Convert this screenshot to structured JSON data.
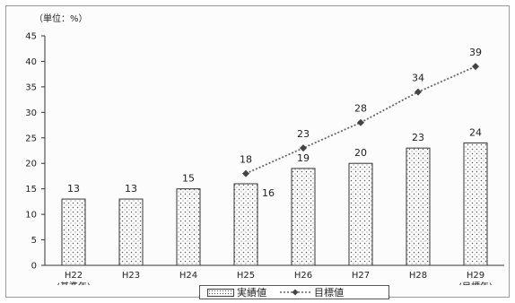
{
  "unit_label": "（単位：%）",
  "legend": {
    "actual": "実績値",
    "target": "目標値"
  },
  "colors": {
    "bar_stroke": "#333333",
    "target_line": "#666666",
    "axis": "#333333"
  },
  "chart_data": {
    "type": "bar",
    "categories": [
      "H22",
      "H23",
      "H24",
      "H25",
      "H26",
      "H27",
      "H28",
      "H29"
    ],
    "category_sublabels": [
      "(基準年)",
      "",
      "",
      "",
      "",
      "",
      "",
      "(目標年)"
    ],
    "series": [
      {
        "name": "実績値",
        "type": "bar",
        "values": [
          13,
          13,
          15,
          16,
          19,
          20,
          23,
          24
        ]
      },
      {
        "name": "目標値",
        "type": "line",
        "values": [
          null,
          null,
          null,
          18,
          23,
          28,
          34,
          39
        ]
      }
    ],
    "ylim": [
      0,
      45
    ],
    "yticks": [
      0,
      5,
      10,
      15,
      20,
      25,
      30,
      35,
      40,
      45
    ],
    "grid": false,
    "legend_position": "bottom"
  }
}
